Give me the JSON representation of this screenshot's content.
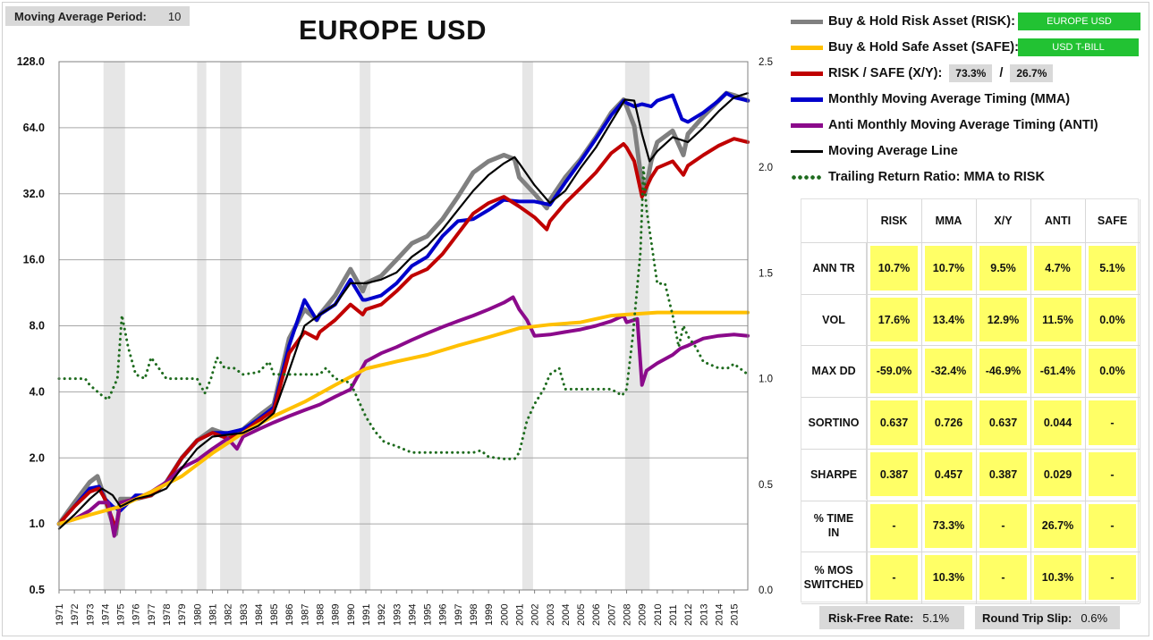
{
  "header": {
    "ma_label": "Moving Average Period:",
    "ma_value": "10",
    "title": "EUROPE USD"
  },
  "legend": {
    "risk": {
      "label": "Buy & Hold Risk Asset (RISK):",
      "value": "EUROPE USD",
      "color": "#808080"
    },
    "safe": {
      "label": "Buy & Hold Safe Asset (SAFE):",
      "value": "USD T-BILL",
      "color": "#ffc000"
    },
    "xy": {
      "label": "RISK / SAFE (X/Y):",
      "risk_pct": "73.3%",
      "slash": "/",
      "safe_pct": "26.7%",
      "color": "#c00000"
    },
    "mma": {
      "label": "Monthly Moving Average Timing (MMA)",
      "color": "#0000cc"
    },
    "anti": {
      "label": "Anti Monthly Moving Average Timing (ANTI)",
      "color": "#8b0a8b"
    },
    "ma_line": {
      "label": "Moving Average Line",
      "color": "#000000"
    },
    "ratio": {
      "label": "Trailing Return Ratio: MMA to RISK",
      "color": "#1e6b1e"
    }
  },
  "stats": {
    "columns": [
      "RISK",
      "MMA",
      "X/Y",
      "ANTI",
      "SAFE"
    ],
    "rows": [
      {
        "label": "ANN TR",
        "values": [
          "10.7%",
          "10.7%",
          "9.5%",
          "4.7%",
          "5.1%"
        ]
      },
      {
        "label": "VOL",
        "values": [
          "17.6%",
          "13.4%",
          "12.9%",
          "11.5%",
          "0.0%"
        ]
      },
      {
        "label": "MAX DD",
        "values": [
          "-59.0%",
          "-32.4%",
          "-46.9%",
          "-61.4%",
          "0.0%"
        ]
      },
      {
        "label": "SORTINO",
        "values": [
          "0.637",
          "0.726",
          "0.637",
          "0.044",
          "-"
        ]
      },
      {
        "label": "SHARPE",
        "values": [
          "0.387",
          "0.457",
          "0.387",
          "0.029",
          "-"
        ]
      },
      {
        "label": "% TIME IN",
        "values": [
          "-",
          "73.3%",
          "-",
          "26.7%",
          "-"
        ]
      },
      {
        "label": "% MOS SWITCHED",
        "values": [
          "-",
          "10.3%",
          "-",
          "10.3%",
          "-"
        ]
      }
    ]
  },
  "footer": {
    "rf_label": "Risk-Free Rate:",
    "rf_value": "5.1%",
    "slip_label": "Round Trip Slip:",
    "slip_value": "0.6%"
  },
  "chart_data": {
    "type": "line",
    "y_scale": "log2",
    "ylim": [
      0.5,
      128
    ],
    "y_ticks": [
      "0.5",
      "1.0",
      "2.0",
      "4.0",
      "8.0",
      "16.0",
      "32.0",
      "64.0",
      "128.0"
    ],
    "y2lim": [
      0.0,
      2.5
    ],
    "y2_ticks": [
      "0.0",
      "0.5",
      "1.0",
      "1.5",
      "2.0",
      "2.5"
    ],
    "xlim": [
      1971,
      2015.9
    ],
    "x_ticks": [
      "1971",
      "1972",
      "1973",
      "1974",
      "1975",
      "1976",
      "1977",
      "1978",
      "1979",
      "1980",
      "1981",
      "1982",
      "1983",
      "1984",
      "1985",
      "1986",
      "1987",
      "1988",
      "1989",
      "1990",
      "1991",
      "1992",
      "1993",
      "1994",
      "1995",
      "1996",
      "1997",
      "1998",
      "1999",
      "2000",
      "2001",
      "2002",
      "2003",
      "2004",
      "2005",
      "2006",
      "2007",
      "2008",
      "2009",
      "2010",
      "2011",
      "2012",
      "2013",
      "2014",
      "2015"
    ],
    "recessions": [
      [
        1973.9,
        1975.3
      ],
      [
        1980.0,
        1980.6
      ],
      [
        1981.5,
        1982.9
      ],
      [
        1990.6,
        1991.3
      ],
      [
        2001.2,
        2001.9
      ],
      [
        2007.9,
        2009.5
      ]
    ],
    "grid": true,
    "series": [
      {
        "name": "Buy & Hold Risk Asset (RISK)",
        "color": "#808080",
        "width": 5,
        "axis": "left",
        "x": [
          1971,
          1972,
          1973,
          1973.5,
          1974,
          1974.7,
          1975,
          1976,
          1977,
          1978,
          1979,
          1980,
          1981,
          1982,
          1983,
          1984,
          1985,
          1986,
          1987,
          1987.8,
          1988,
          1989,
          1990,
          1990.8,
          1991,
          1992,
          1993,
          1994,
          1995,
          1996,
          1997,
          1998,
          1999,
          2000,
          2000.7,
          2001,
          2002,
          2002.8,
          2003,
          2004,
          2005,
          2006,
          2007,
          2007.8,
          2008,
          2008.5,
          2008.9,
          2009.2,
          2009.6,
          2010,
          2011,
          2011.7,
          2012,
          2013,
          2014,
          2014.5,
          2015,
          2015.9
        ],
        "y": [
          1.0,
          1.25,
          1.55,
          1.65,
          1.3,
          0.9,
          1.3,
          1.3,
          1.35,
          1.55,
          2.0,
          2.4,
          2.7,
          2.55,
          2.7,
          3.1,
          3.5,
          7.0,
          9.5,
          8.5,
          9.0,
          11.0,
          14.5,
          11.5,
          12.5,
          13.5,
          16.0,
          19.0,
          20.5,
          24.5,
          31.0,
          40.0,
          45.0,
          48.0,
          46.0,
          38.0,
          32.0,
          27.5,
          30.0,
          38.0,
          46.0,
          58.0,
          75.0,
          86.0,
          80.0,
          65.0,
          40.0,
          32.0,
          45.0,
          55.0,
          62.0,
          48.0,
          60.0,
          72.0,
          85.0,
          92.0,
          90.0,
          85.0
        ]
      },
      {
        "name": "Monthly Moving Average Timing (MMA)",
        "color": "#0000cc",
        "width": 4,
        "axis": "left",
        "x": [
          1971,
          1972,
          1973,
          1973.6,
          1974,
          1974.5,
          1975,
          1976,
          1977,
          1978,
          1979,
          1980,
          1981,
          1982,
          1983,
          1984,
          1985,
          1986,
          1987,
          1987.8,
          1988,
          1989,
          1990,
          1990.8,
          1991,
          1992,
          1993,
          1994,
          1995,
          1996,
          1997,
          1998,
          1999,
          2000,
          2001,
          2002,
          2003,
          2004,
          2005,
          2006,
          2007,
          2007.8,
          2008,
          2008.5,
          2009,
          2009.6,
          2010,
          2011,
          2011.6,
          2012,
          2013,
          2014,
          2014.5,
          2015,
          2015.9
        ],
        "y": [
          1.0,
          1.2,
          1.45,
          1.48,
          1.3,
          1.2,
          1.15,
          1.35,
          1.35,
          1.55,
          2.0,
          2.4,
          2.6,
          2.6,
          2.7,
          3.0,
          3.4,
          6.5,
          10.5,
          8.5,
          9.0,
          10.0,
          13.0,
          10.5,
          10.5,
          11.0,
          12.5,
          15.0,
          16.5,
          20.5,
          24.0,
          24.5,
          27.0,
          30.0,
          29.5,
          29.5,
          28.5,
          36.0,
          45.0,
          57.0,
          73.0,
          85.0,
          83.0,
          80.0,
          82.0,
          80.0,
          85.0,
          90.0,
          70.0,
          68.0,
          75.0,
          85.0,
          92.0,
          88.0,
          85.0
        ]
      },
      {
        "name": "RISK / SAFE (X/Y)",
        "color": "#c00000",
        "width": 4,
        "axis": "left",
        "x": [
          1971,
          1972,
          1973,
          1973.6,
          1974,
          1974.7,
          1975,
          1976,
          1977,
          1978,
          1979,
          1980,
          1981,
          1982,
          1983,
          1984,
          1985,
          1986,
          1987,
          1987.8,
          1988,
          1989,
          1990,
          1990.8,
          1991,
          1992,
          1993,
          1994,
          1995,
          1996,
          1997,
          1998,
          1999,
          2000,
          2001,
          2002,
          2002.8,
          2003,
          2004,
          2005,
          2006,
          2007,
          2007.8,
          2008,
          2008.5,
          2009,
          2009.6,
          2010,
          2011,
          2011.7,
          2012,
          2013,
          2014,
          2015,
          2015.9
        ],
        "y": [
          1.0,
          1.2,
          1.4,
          1.45,
          1.3,
          0.95,
          1.25,
          1.3,
          1.35,
          1.55,
          2.0,
          2.4,
          2.6,
          2.45,
          2.6,
          2.95,
          3.3,
          6.0,
          7.5,
          7.0,
          7.5,
          8.5,
          10.0,
          9.0,
          9.5,
          10.0,
          11.5,
          13.5,
          14.5,
          17.0,
          21.0,
          26.0,
          29.0,
          31.0,
          28.0,
          25.0,
          22.0,
          24.0,
          29.0,
          34.0,
          40.0,
          49.0,
          54.0,
          52.0,
          45.0,
          31.0,
          38.0,
          42.0,
          45.0,
          39.0,
          43.0,
          48.0,
          53.0,
          57.0,
          55.0
        ]
      },
      {
        "name": "Anti Monthly Moving Average Timing (ANTI)",
        "color": "#8b0a8b",
        "width": 4,
        "axis": "left",
        "x": [
          1971,
          1972,
          1973,
          1973.6,
          1974.2,
          1974.6,
          1975,
          1976,
          1977,
          1978,
          1979,
          1980,
          1981,
          1982,
          1982.6,
          1983,
          1984,
          1985,
          1986,
          1987,
          1988,
          1989,
          1990,
          1991,
          1992,
          1993,
          1994,
          1995,
          1996,
          1997,
          1998,
          1999,
          2000,
          2000.6,
          2001,
          2001.5,
          2002,
          2003,
          2004,
          2005,
          2006,
          2007,
          2007.8,
          2008,
          2008.7,
          2009,
          2009.3,
          2010,
          2011,
          2011.5,
          2012,
          2013,
          2014,
          2015,
          2015.9
        ],
        "y": [
          1.0,
          1.05,
          1.15,
          1.25,
          1.25,
          0.88,
          1.25,
          1.3,
          1.4,
          1.55,
          1.8,
          1.95,
          2.2,
          2.45,
          2.2,
          2.5,
          2.7,
          2.9,
          3.1,
          3.3,
          3.5,
          3.8,
          4.1,
          5.5,
          6.0,
          6.4,
          6.9,
          7.4,
          7.9,
          8.4,
          8.9,
          9.5,
          10.2,
          10.8,
          9.5,
          8.5,
          7.2,
          7.3,
          7.5,
          7.7,
          8.0,
          8.4,
          8.9,
          8.3,
          8.6,
          4.3,
          5.0,
          5.4,
          5.9,
          6.3,
          6.5,
          7.0,
          7.2,
          7.3,
          7.2
        ]
      },
      {
        "name": "Buy & Hold Safe Asset (SAFE)",
        "color": "#ffc000",
        "width": 4,
        "axis": "left",
        "x": [
          1971,
          1973,
          1975,
          1977,
          1979,
          1981,
          1983,
          1985,
          1987,
          1989,
          1991,
          1993,
          1995,
          1997,
          1999,
          2001,
          2003,
          2005,
          2007,
          2008,
          2009,
          2010,
          2015.9
        ],
        "y": [
          1.0,
          1.1,
          1.2,
          1.4,
          1.65,
          2.1,
          2.6,
          3.1,
          3.6,
          4.3,
          5.1,
          5.5,
          5.9,
          6.5,
          7.1,
          7.8,
          8.1,
          8.3,
          8.9,
          9.0,
          9.1,
          9.2,
          9.2
        ]
      },
      {
        "name": "Moving Average Line",
        "color": "#000000",
        "width": 2.2,
        "axis": "left",
        "x": [
          1971,
          1972,
          1973,
          1973.8,
          1974.5,
          1975,
          1976,
          1977,
          1978,
          1979,
          1980,
          1981,
          1982,
          1983,
          1984,
          1985,
          1986,
          1987,
          1988,
          1989,
          1990,
          1991,
          1992,
          1993,
          1994,
          1995,
          1996,
          1997,
          1998,
          1999,
          2000,
          2000.7,
          2001,
          2002,
          2003,
          2004,
          2005,
          2006,
          2007,
          2007.9,
          2008.5,
          2009,
          2009.5,
          2010,
          2011,
          2012,
          2013,
          2014,
          2015,
          2015.9
        ],
        "y": [
          0.95,
          1.1,
          1.3,
          1.45,
          1.35,
          1.2,
          1.3,
          1.35,
          1.45,
          1.8,
          2.2,
          2.5,
          2.55,
          2.6,
          2.8,
          3.2,
          5.0,
          8.0,
          9.0,
          10.0,
          12.5,
          12.5,
          13.0,
          14.0,
          16.5,
          18.5,
          22.0,
          27.0,
          33.0,
          39.0,
          44.0,
          47.0,
          44.0,
          35.0,
          29.0,
          33.0,
          42.0,
          52.0,
          68.0,
          86.0,
          85.0,
          60.0,
          45.0,
          50.0,
          58.0,
          55.0,
          64.0,
          76.0,
          88.0,
          92.0
        ]
      },
      {
        "name": "Trailing Return Ratio: MMA to RISK",
        "color": "#1e6b1e",
        "width": 3,
        "dotted": true,
        "axis": "right",
        "x": [
          1971,
          1972,
          1972.7,
          1973,
          1973.8,
          1974.2,
          1974.5,
          1974.8,
          1975.1,
          1975.5,
          1976,
          1976.6,
          1977,
          1978,
          1979,
          1980,
          1980.5,
          1980.9,
          1981.3,
          1981.8,
          1982.4,
          1983,
          1984,
          1984.7,
          1985,
          1986,
          1987,
          1988,
          1988.4,
          1989,
          1990,
          1990.5,
          1991,
          1991.6,
          1992.2,
          1993,
          1994,
          1995,
          1996,
          1997,
          1998,
          1998.5,
          1999,
          2000,
          2000.7,
          2001,
          2001.5,
          2002,
          2002.6,
          2003,
          2003.6,
          2004,
          2005,
          2006,
          2007,
          2007.7,
          2008,
          2008.4,
          2008.9,
          2009.1,
          2009.3,
          2009.6,
          2010,
          2010.5,
          2011,
          2011.4,
          2011.7,
          2012,
          2012.5,
          2013,
          2014,
          2014.6,
          2015,
          2015.9
        ],
        "y": [
          1.0,
          1.0,
          1.0,
          0.97,
          0.92,
          0.9,
          0.95,
          1.0,
          1.3,
          1.15,
          1.02,
          1.0,
          1.1,
          1.0,
          1.0,
          1.0,
          0.93,
          1.0,
          1.1,
          1.05,
          1.05,
          1.02,
          1.03,
          1.08,
          1.02,
          1.02,
          1.02,
          1.02,
          1.05,
          1.0,
          0.98,
          0.9,
          0.82,
          0.75,
          0.7,
          0.68,
          0.65,
          0.65,
          0.65,
          0.65,
          0.65,
          0.66,
          0.63,
          0.62,
          0.62,
          0.65,
          0.8,
          0.88,
          0.95,
          1.02,
          1.05,
          0.95,
          0.95,
          0.95,
          0.95,
          0.92,
          0.95,
          1.2,
          1.6,
          2.0,
          1.8,
          1.65,
          1.45,
          1.45,
          1.3,
          1.15,
          1.25,
          1.2,
          1.15,
          1.08,
          1.05,
          1.05,
          1.07,
          1.02
        ]
      }
    ]
  }
}
